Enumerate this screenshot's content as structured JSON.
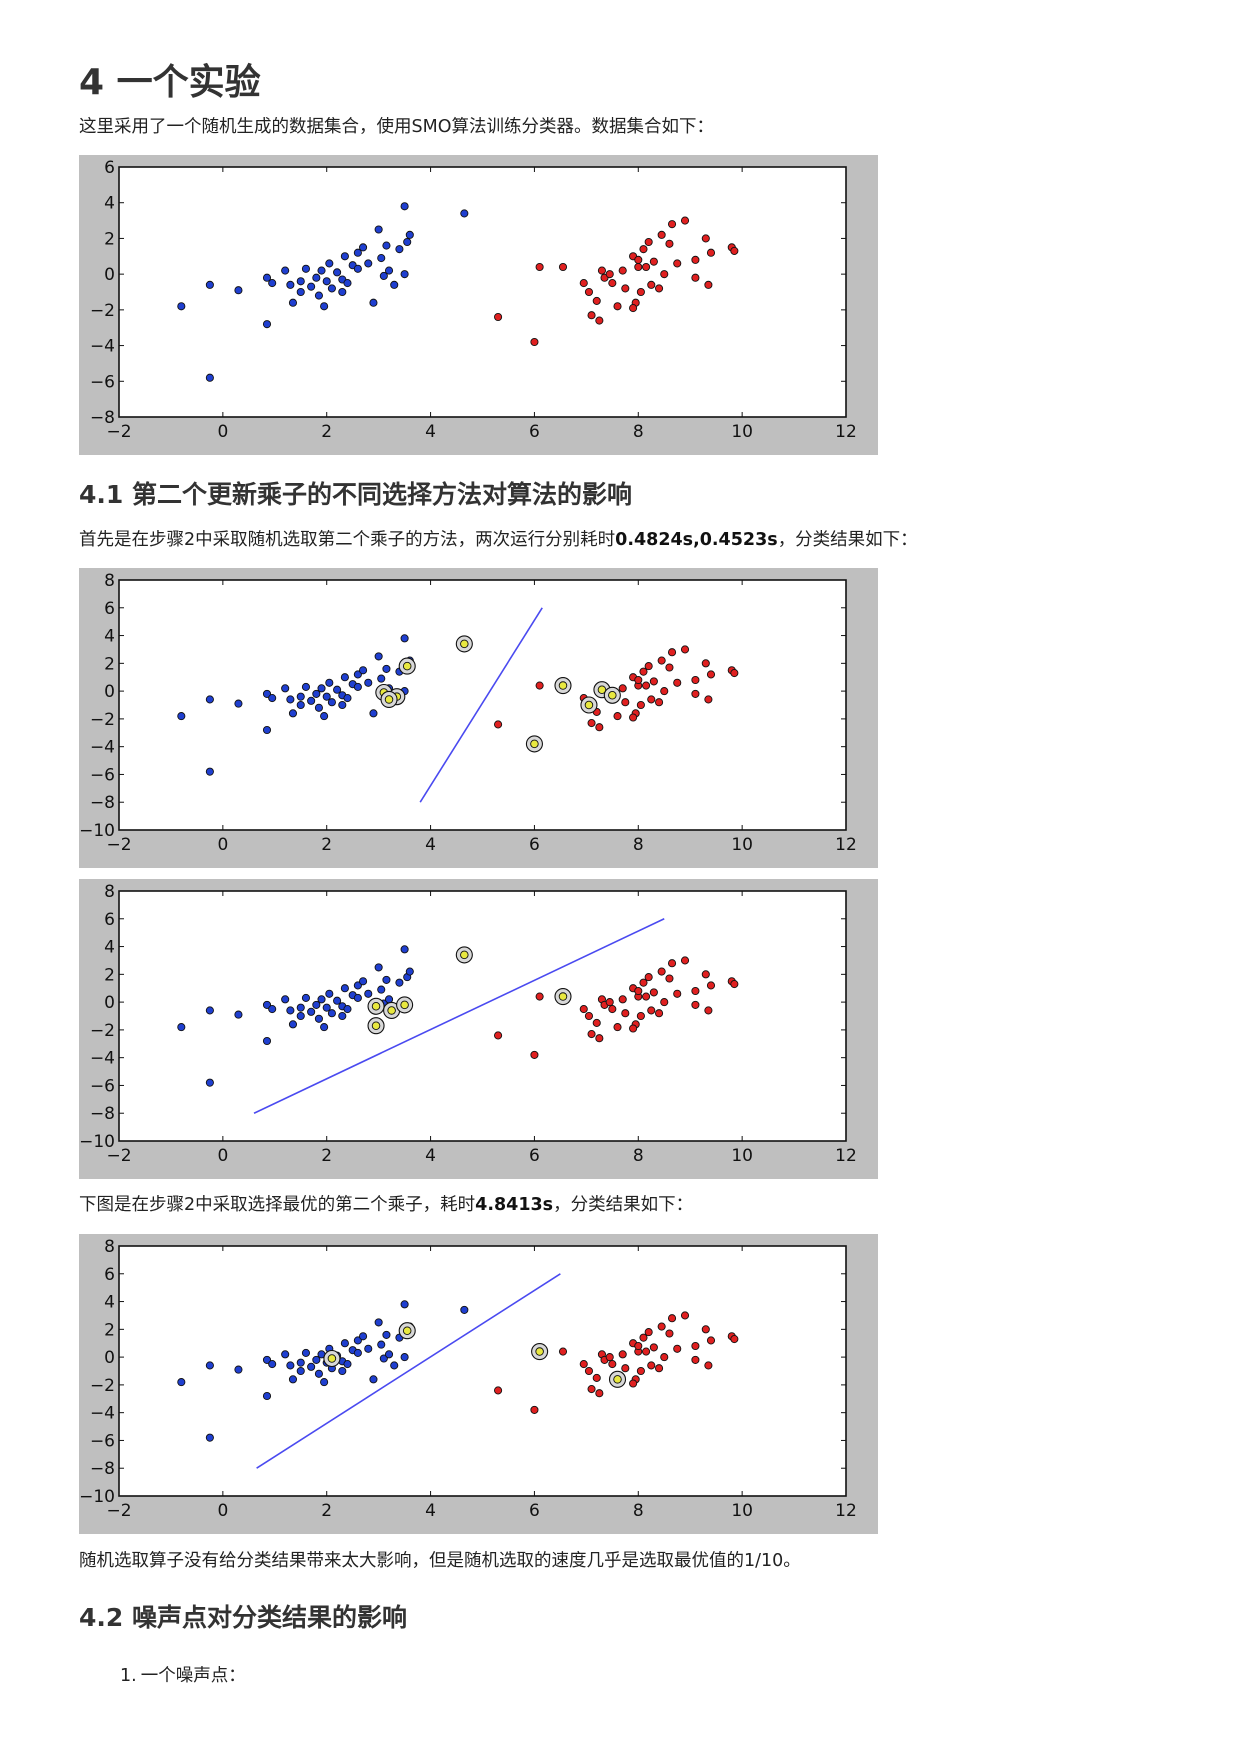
{
  "section4": {
    "title": "4 一个实验",
    "intro": "这里采用了一个随机生成的数据集合，使用SMO算法训练分类器。数据集合如下："
  },
  "section41": {
    "title": "4.1 第二个更新乘子的不同选择方法对算法的影响",
    "text1_pre": "首先是在步骤2中采取随机选取第二个乘子的方法，两次运行分别耗时",
    "text1_bold": "0.4824s,0.4523s",
    "text1_post": "，分类结果如下：",
    "text2_pre": "下图是在步骤2中采取选择最优的第二个乘子，耗时",
    "text2_bold": "4.8413s",
    "text2_post": "，分类结果如下：",
    "text3": "随机选取算子没有给分类结果带来太大影响，但是随机选取的速度几乎是选取最优值的1/10。"
  },
  "section42": {
    "title": "4.2 噪声点对分类结果的影响",
    "list": [
      {
        "num": "1.",
        "text": "一个噪声点："
      }
    ]
  },
  "colors": {
    "class_neg": "#1f3fd0",
    "class_pos": "#e02020",
    "support_vector": "#e8e840",
    "separator": "#4a4af0"
  },
  "chart_data": [
    {
      "type": "scatter",
      "xlim": [
        -2,
        12
      ],
      "ylim": [
        -8,
        6
      ],
      "xticks": [
        "−2",
        "0",
        "2",
        "4",
        "6",
        "8",
        "10",
        "12"
      ],
      "yticks": [
        "6",
        "4",
        "2",
        "0",
        "−2",
        "−4",
        "−6",
        "−8"
      ],
      "series": [
        {
          "class": "neg",
          "points": [
            [
              -0.8,
              -1.8
            ],
            [
              -0.25,
              -0.6
            ],
            [
              -0.25,
              -5.8
            ],
            [
              0.3,
              -0.9
            ],
            [
              0.85,
              -0.2
            ],
            [
              0.85,
              -2.8
            ],
            [
              0.95,
              -0.5
            ],
            [
              1.2,
              0.2
            ],
            [
              1.3,
              -0.6
            ],
            [
              1.35,
              -1.6
            ],
            [
              1.5,
              -0.4
            ],
            [
              1.6,
              0.3
            ],
            [
              1.7,
              -0.7
            ],
            [
              1.8,
              -0.2
            ],
            [
              1.85,
              -1.2
            ],
            [
              1.9,
              0.2
            ],
            [
              2.0,
              -0.4
            ],
            [
              2.05,
              0.6
            ],
            [
              2.1,
              -0.8
            ],
            [
              2.2,
              0.1
            ],
            [
              2.3,
              -0.3
            ],
            [
              2.35,
              1.0
            ],
            [
              2.4,
              -0.5
            ],
            [
              2.5,
              0.5
            ],
            [
              2.6,
              1.2
            ],
            [
              2.7,
              1.5
            ],
            [
              2.8,
              0.6
            ],
            [
              1.95,
              -1.8
            ],
            [
              2.3,
              -1.0
            ],
            [
              2.9,
              -1.6
            ],
            [
              3.0,
              2.5
            ],
            [
              3.05,
              0.9
            ],
            [
              3.1,
              -0.1
            ],
            [
              3.2,
              0.2
            ],
            [
              3.3,
              -0.6
            ],
            [
              3.4,
              1.4
            ],
            [
              3.5,
              0.0
            ],
            [
              3.5,
              3.8
            ],
            [
              3.55,
              1.8
            ],
            [
              3.6,
              2.2
            ],
            [
              3.15,
              1.6
            ],
            [
              4.65,
              3.4
            ],
            [
              2.6,
              0.3
            ],
            [
              1.5,
              -1.0
            ]
          ]
        },
        {
          "class": "pos",
          "points": [
            [
              5.3,
              -2.4
            ],
            [
              6.0,
              -3.8
            ],
            [
              6.1,
              0.4
            ],
            [
              6.55,
              0.4
            ],
            [
              6.95,
              -0.5
            ],
            [
              7.05,
              -1.0
            ],
            [
              7.1,
              -2.3
            ],
            [
              7.2,
              -1.5
            ],
            [
              7.25,
              -2.6
            ],
            [
              7.3,
              0.2
            ],
            [
              7.35,
              -0.2
            ],
            [
              7.45,
              0.0
            ],
            [
              7.5,
              -0.5
            ],
            [
              7.6,
              -1.8
            ],
            [
              7.7,
              0.2
            ],
            [
              7.75,
              -0.8
            ],
            [
              7.9,
              1.0
            ],
            [
              7.95,
              -1.6
            ],
            [
              8.0,
              0.4
            ],
            [
              8.05,
              -1.0
            ],
            [
              8.1,
              1.4
            ],
            [
              8.15,
              0.4
            ],
            [
              8.2,
              1.8
            ],
            [
              8.25,
              -0.6
            ],
            [
              8.3,
              0.7
            ],
            [
              8.4,
              -0.8
            ],
            [
              8.45,
              2.2
            ],
            [
              8.5,
              0.0
            ],
            [
              8.6,
              1.7
            ],
            [
              8.65,
              2.8
            ],
            [
              8.75,
              0.6
            ],
            [
              8.9,
              3.0
            ],
            [
              9.1,
              0.8
            ],
            [
              9.1,
              -0.2
            ],
            [
              9.3,
              2.0
            ],
            [
              9.35,
              -0.6
            ],
            [
              9.4,
              1.2
            ],
            [
              9.8,
              1.5
            ],
            [
              9.85,
              1.3
            ],
            [
              7.9,
              -1.9
            ],
            [
              8.0,
              0.8
            ]
          ]
        }
      ]
    },
    {
      "type": "scatter",
      "xlim": [
        -2,
        12
      ],
      "ylim": [
        -10,
        8
      ],
      "xticks": [
        "−2",
        "0",
        "2",
        "4",
        "6",
        "8",
        "10",
        "12"
      ],
      "yticks": [
        "8",
        "6",
        "4",
        "2",
        "0",
        "−2",
        "−4",
        "−6",
        "−8",
        "−10"
      ],
      "support_vectors": [
        [
          4.65,
          3.4
        ],
        [
          3.55,
          1.8
        ],
        [
          3.1,
          -0.1
        ],
        [
          3.35,
          -0.4
        ],
        [
          3.2,
          -0.6
        ],
        [
          6.55,
          0.4
        ],
        [
          7.3,
          0.1
        ],
        [
          7.5,
          -0.3
        ],
        [
          7.05,
          -1.0
        ],
        [
          6.0,
          -3.8
        ]
      ],
      "separator": [
        [
          3.8,
          -8.0
        ],
        [
          6.15,
          6.0
        ]
      ]
    },
    {
      "type": "scatter",
      "xlim": [
        -2,
        12
      ],
      "ylim": [
        -10,
        8
      ],
      "xticks": [
        "−2",
        "0",
        "2",
        "4",
        "6",
        "8",
        "10",
        "12"
      ],
      "yticks": [
        "8",
        "6",
        "4",
        "2",
        "0",
        "−2",
        "−4",
        "−6",
        "−8",
        "−10"
      ],
      "support_vectors": [
        [
          4.65,
          3.4
        ],
        [
          2.95,
          -0.3
        ],
        [
          3.25,
          -0.6
        ],
        [
          3.5,
          -0.2
        ],
        [
          2.95,
          -1.7
        ],
        [
          6.55,
          0.4
        ]
      ],
      "separator": [
        [
          0.6,
          -8.0
        ],
        [
          8.5,
          6.0
        ]
      ]
    },
    {
      "type": "scatter",
      "xlim": [
        -2,
        12
      ],
      "ylim": [
        -10,
        8
      ],
      "xticks": [
        "−2",
        "0",
        "2",
        "4",
        "6",
        "8",
        "10",
        "12"
      ],
      "yticks": [
        "8",
        "6",
        "4",
        "2",
        "0",
        "−2",
        "−4",
        "−6",
        "−8",
        "−10"
      ],
      "support_vectors": [
        [
          3.55,
          1.9
        ],
        [
          6.1,
          0.4
        ],
        [
          7.6,
          -1.6
        ],
        [
          2.1,
          -0.1
        ]
      ],
      "separator": [
        [
          0.65,
          -8.0
        ],
        [
          6.5,
          6.0
        ]
      ]
    }
  ]
}
